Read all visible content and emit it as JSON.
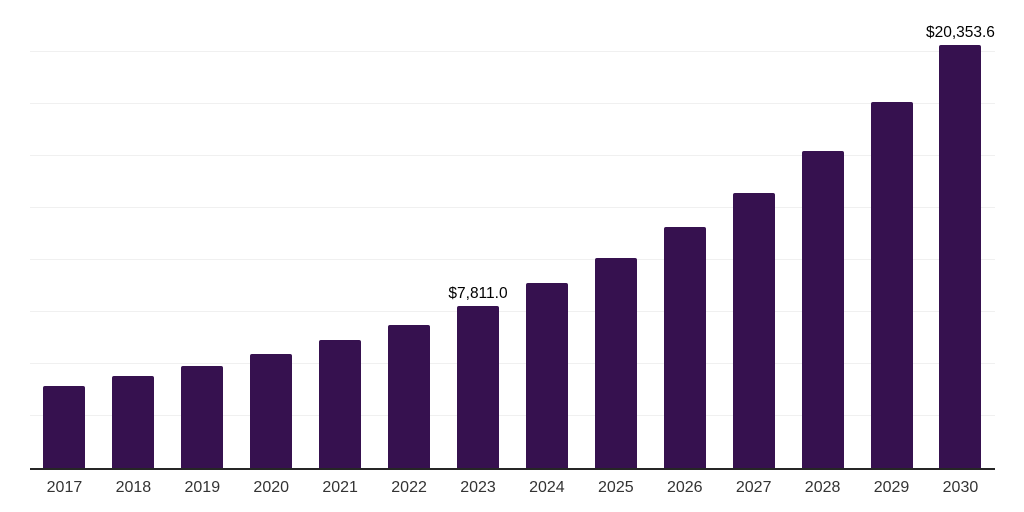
{
  "chart_data": {
    "type": "bar",
    "title": "",
    "xlabel": "",
    "ylabel": "",
    "categories": [
      "2017",
      "2018",
      "2019",
      "2020",
      "2021",
      "2022",
      "2023",
      "2024",
      "2025",
      "2026",
      "2027",
      "2028",
      "2029",
      "2030"
    ],
    "values": [
      3950,
      4410,
      4890,
      5480,
      6180,
      6870,
      7811.0,
      8910,
      10080,
      11610,
      13220,
      15250,
      17600,
      20353.6
    ],
    "labeled_points": [
      {
        "index": 6,
        "category": "2023",
        "text": "$7,811.0"
      },
      {
        "index": 13,
        "category": "2030",
        "text": "$20,353.6"
      }
    ],
    "ylim": [
      0,
      22510
    ],
    "gridline_step": 2500,
    "grid": "horizontal",
    "legend": "none",
    "y_axis_labels_visible": false,
    "bar_color": "#36114F"
  },
  "colors": {
    "background": "#ffffff",
    "bar": "#36114F",
    "gridline": "#f0f0f0",
    "axis_line": "#262626",
    "tick_label": "#333333",
    "data_label": "#000000"
  }
}
